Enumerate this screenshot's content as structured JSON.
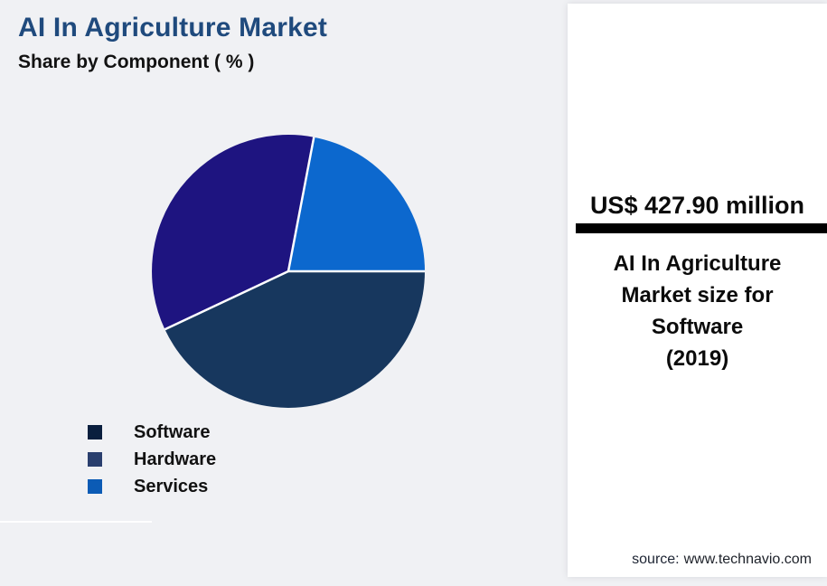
{
  "header": {
    "title": "AI In Agriculture Market",
    "subtitle": "Share by Component ( % )"
  },
  "chart_data": {
    "type": "pie",
    "title": "AI In Agriculture Market",
    "subtitle": "Share by Component ( % )",
    "categories": [
      "Software",
      "Hardware",
      "Services"
    ],
    "values": [
      43,
      35,
      22
    ],
    "unit": "%",
    "start_angle_deg": 0,
    "direction": "clockwise",
    "slice_colors": [
      "#17375E",
      "#1E1480",
      "#0C68CE"
    ],
    "legend_colors": [
      "#0A1F3E",
      "#2A3F6E",
      "#0B5BB5"
    ],
    "legend_position": "bottom-left",
    "data_labels_shown": false,
    "annotation": "US$ 427.90 million — AI In Agriculture Market size for Software (2019)"
  },
  "panel": {
    "headline": "US$ 427.90 million",
    "description_lines": [
      "AI In Agriculture",
      "Market size for",
      "Software",
      "(2019)"
    ],
    "source_label": "source:",
    "source_url": "www.technavio.com"
  },
  "colors": {
    "background": "#F0F1F4",
    "panel_background": "#FFFFFF",
    "title_text": "#1F4A7D",
    "headline_bar": "#000000"
  }
}
